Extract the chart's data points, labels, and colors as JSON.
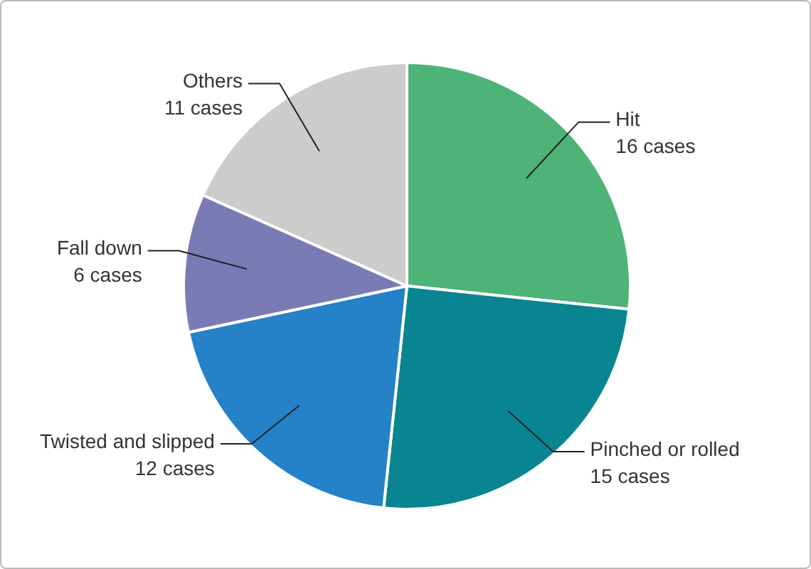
{
  "chart_data": {
    "type": "pie",
    "categories": [
      "Hit",
      "Pinched or rolled",
      "Twisted and slipped",
      "Fall down",
      "Others"
    ],
    "values": [
      16,
      15,
      12,
      6,
      11
    ],
    "value_labels": [
      "16 cases",
      "15 cases",
      "12 cases",
      "6 cases",
      "11 cases"
    ],
    "colors": [
      "#4db377",
      "#088590",
      "#2581c8",
      "#7a7bb5",
      "#cccccc"
    ],
    "legend": false
  }
}
